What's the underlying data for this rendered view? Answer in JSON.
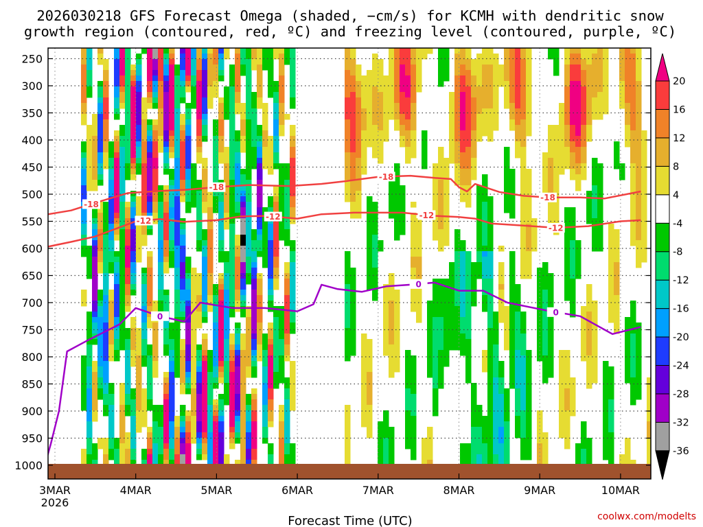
{
  "chart_data": {
    "type": "heatmap",
    "title_line1": "2026030218 GFS Forecast Omega (shaded, −cm/s) for KCMH with dendritic snow",
    "title_line2": "growth region (contoured, red, ºC) and freezing level (contoured, purple, ºC)",
    "xlabel": "Forecast Time (UTC)",
    "credit": "coolwx.com/modelts",
    "x_ticks": [
      {
        "label": "3MAR",
        "day": 0
      },
      {
        "label": "4MAR",
        "day": 1
      },
      {
        "label": "5MAR",
        "day": 2
      },
      {
        "label": "6MAR",
        "day": 3
      },
      {
        "label": "7MAR",
        "day": 4
      },
      {
        "label": "8MAR",
        "day": 5
      },
      {
        "label": "9MAR",
        "day": 6
      },
      {
        "label": "10MAR",
        "day": 7
      }
    ],
    "x_year_label": "2026",
    "xlim_days": [
      -0.125,
      7.25
    ],
    "y_ticks": [
      250,
      300,
      350,
      400,
      450,
      500,
      550,
      600,
      650,
      700,
      750,
      800,
      850,
      900,
      950,
      1000
    ],
    "ylim_hpa": [
      200,
      1000
    ],
    "colorbar": {
      "levels": [
        -36,
        -32,
        -28,
        -24,
        -20,
        -16,
        -12,
        -8,
        -4,
        4,
        8,
        12,
        16,
        20
      ],
      "colors": [
        "#000000",
        "#a0a0a0",
        "#a000c8",
        "#6400dc",
        "#1e3cff",
        "#00a0ff",
        "#00c8c8",
        "#00dc6e",
        "#00c800",
        "#ffffff",
        "#e6dc32",
        "#e6af2d",
        "#f08228",
        "#fa3c3c",
        "#f00082"
      ]
    },
    "contours": {
      "dgz_minus18": {
        "label": "-18",
        "color": "#f04040",
        "points": [
          [
            -0.125,
            538
          ],
          [
            0.2,
            530
          ],
          [
            0.5,
            516
          ],
          [
            0.9,
            498
          ],
          [
            1.3,
            494
          ],
          [
            1.6,
            492
          ],
          [
            2.0,
            487
          ],
          [
            2.4,
            483
          ],
          [
            2.9,
            485
          ],
          [
            3.3,
            481
          ],
          [
            3.6,
            476
          ],
          [
            4.0,
            468
          ],
          [
            4.4,
            466
          ],
          [
            4.7,
            470
          ],
          [
            4.9,
            472
          ],
          [
            5.0,
            487
          ],
          [
            5.1,
            495
          ],
          [
            5.2,
            481
          ],
          [
            5.5,
            496
          ],
          [
            5.8,
            503
          ],
          [
            6.1,
            506
          ],
          [
            6.5,
            506
          ],
          [
            6.8,
            508
          ],
          [
            7.25,
            495
          ]
        ],
        "label_days": [
          0.45,
          2.0,
          4.1,
          6.1
        ]
      },
      "dgz_minus12": {
        "label": "-12",
        "color": "#f04040",
        "points": [
          [
            -0.125,
            598
          ],
          [
            0.2,
            588
          ],
          [
            0.5,
            578
          ],
          [
            1.0,
            550
          ],
          [
            1.3,
            546
          ],
          [
            1.6,
            551
          ],
          [
            2.0,
            548
          ],
          [
            2.3,
            541
          ],
          [
            2.6,
            540
          ],
          [
            3.0,
            545
          ],
          [
            3.3,
            537
          ],
          [
            3.7,
            534
          ],
          [
            4.3,
            534
          ],
          [
            4.7,
            540
          ],
          [
            5.0,
            542
          ],
          [
            5.2,
            545
          ],
          [
            5.4,
            554
          ],
          [
            5.8,
            558
          ],
          [
            6.2,
            562
          ],
          [
            6.6,
            559
          ],
          [
            7.0,
            550
          ],
          [
            7.25,
            548
          ]
        ],
        "label_days": [
          1.1,
          2.7,
          4.6,
          6.2
        ]
      },
      "freezing_0": {
        "label": "0",
        "color": "#a000c8",
        "points": [
          [
            -0.125,
            1000
          ],
          [
            -0.05,
            960
          ],
          [
            0.05,
            900
          ],
          [
            0.15,
            790
          ],
          [
            0.4,
            770
          ],
          [
            0.8,
            740
          ],
          [
            1.0,
            710
          ],
          [
            1.3,
            725
          ],
          [
            1.6,
            735
          ],
          [
            1.8,
            700
          ],
          [
            2.2,
            710
          ],
          [
            2.6,
            710
          ],
          [
            3.0,
            716
          ],
          [
            3.2,
            703
          ],
          [
            3.3,
            667
          ],
          [
            3.5,
            675
          ],
          [
            3.8,
            680
          ],
          [
            4.1,
            670
          ],
          [
            4.4,
            667
          ],
          [
            4.7,
            663
          ],
          [
            5.0,
            678
          ],
          [
            5.3,
            678
          ],
          [
            5.6,
            700
          ],
          [
            6.1,
            715
          ],
          [
            6.5,
            725
          ],
          [
            6.9,
            758
          ],
          [
            7.25,
            745
          ]
        ],
        "label_days": [
          1.3,
          4.5,
          6.2
        ]
      }
    }
  }
}
